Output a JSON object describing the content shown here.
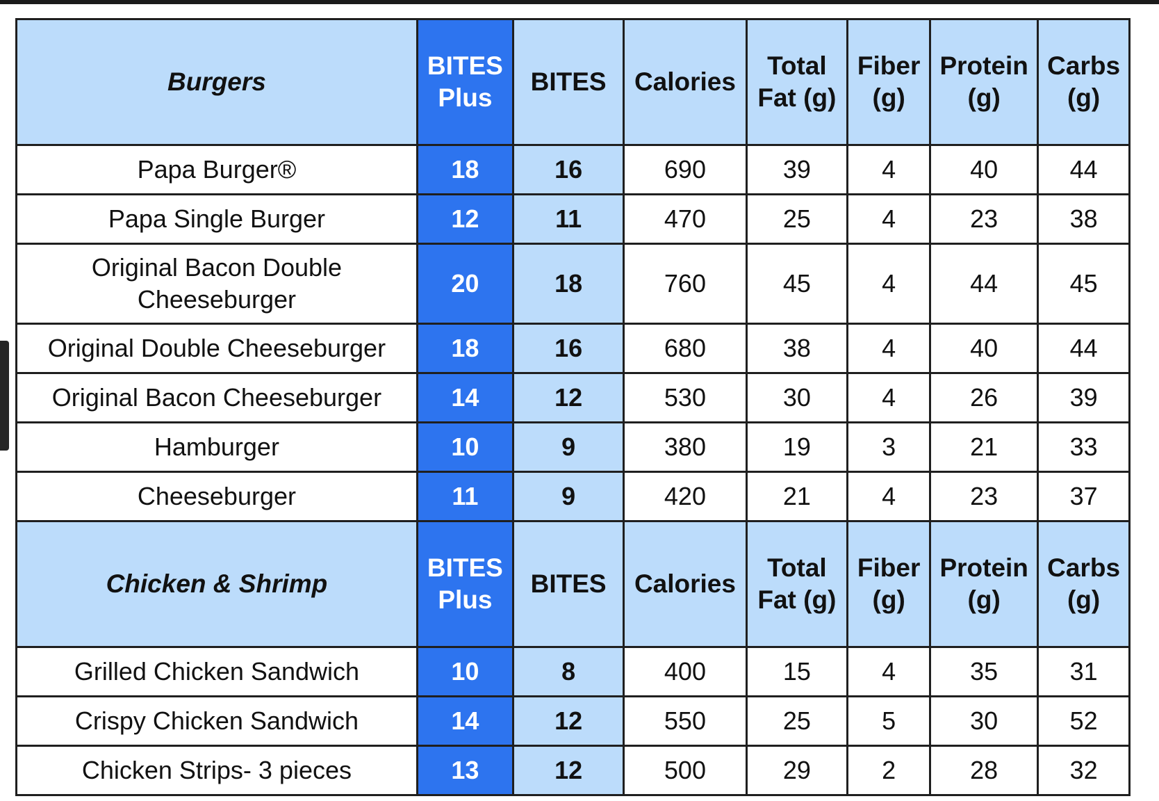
{
  "sections": [
    {
      "header": {
        "category": "Burgers",
        "bites_plus": "BITES Plus",
        "bites": "BITES",
        "calories": "Calories",
        "total_fat": "Total Fat (g)",
        "fiber": "Fiber (g)",
        "protein": "Protein (g)",
        "carbs": "Carbs (g)"
      },
      "rows": [
        {
          "name": "Papa Burger®",
          "bites_plus": "18",
          "bites": "16",
          "calories": "690",
          "total_fat": "39",
          "fiber": "4",
          "protein": "40",
          "carbs": "44"
        },
        {
          "name": "Papa Single Burger",
          "bites_plus": "12",
          "bites": "11",
          "calories": "470",
          "total_fat": "25",
          "fiber": "4",
          "protein": "23",
          "carbs": "38"
        },
        {
          "name": "Original Bacon Double Cheeseburger",
          "bites_plus": "20",
          "bites": "18",
          "calories": "760",
          "total_fat": "45",
          "fiber": "4",
          "protein": "44",
          "carbs": "45"
        },
        {
          "name": "Original Double Cheeseburger",
          "bites_plus": "18",
          "bites": "16",
          "calories": "680",
          "total_fat": "38",
          "fiber": "4",
          "protein": "40",
          "carbs": "44"
        },
        {
          "name": "Original Bacon Cheeseburger",
          "bites_plus": "14",
          "bites": "12",
          "calories": "530",
          "total_fat": "30",
          "fiber": "4",
          "protein": "26",
          "carbs": "39"
        },
        {
          "name": "Hamburger",
          "bites_plus": "10",
          "bites": "9",
          "calories": "380",
          "total_fat": "19",
          "fiber": "3",
          "protein": "21",
          "carbs": "33"
        },
        {
          "name": "Cheeseburger",
          "bites_plus": "11",
          "bites": "9",
          "calories": "420",
          "total_fat": "21",
          "fiber": "4",
          "protein": "23",
          "carbs": "37"
        }
      ]
    },
    {
      "header": {
        "category": "Chicken & Shrimp",
        "bites_plus": "BITES Plus",
        "bites": "BITES",
        "calories": "Calories",
        "total_fat": "Total Fat (g)",
        "fiber": "Fiber (g)",
        "protein": "Protein (g)",
        "carbs": "Carbs (g)"
      },
      "rows": [
        {
          "name": "Grilled Chicken Sandwich",
          "bites_plus": "10",
          "bites": "8",
          "calories": "400",
          "total_fat": "15",
          "fiber": "4",
          "protein": "35",
          "carbs": "31"
        },
        {
          "name": "Crispy Chicken Sandwich",
          "bites_plus": "14",
          "bites": "12",
          "calories": "550",
          "total_fat": "25",
          "fiber": "5",
          "protein": "30",
          "carbs": "52"
        },
        {
          "name": "Chicken Strips- 3 pieces",
          "bites_plus": "13",
          "bites": "12",
          "calories": "500",
          "total_fat": "29",
          "fiber": "2",
          "protein": "28",
          "carbs": "32"
        }
      ]
    }
  ],
  "colors": {
    "bites_plus_blue": "#2d74ef",
    "header_light_blue": "#bcdcfb",
    "border": "#1f1f1f"
  }
}
